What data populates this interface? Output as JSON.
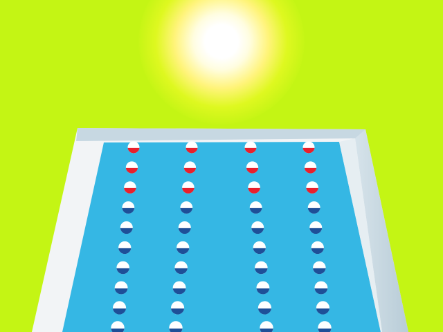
{
  "scene": {
    "colors": {
      "background": "#c4f514",
      "deck": "#f2f4f6",
      "deck_shade": "#c7d8e2",
      "water": "#35b7e4",
      "buoy_red": "#e8202c",
      "buoy_blue": "#1e4f98",
      "buoy_white": "#ffffff"
    },
    "lane_ropes": [
      {
        "name": "rope-1"
      },
      {
        "name": "rope-2"
      },
      {
        "name": "rope-3"
      },
      {
        "name": "rope-4"
      }
    ],
    "buoys_per_rope": 10,
    "red_buoys_per_rope": 3
  }
}
